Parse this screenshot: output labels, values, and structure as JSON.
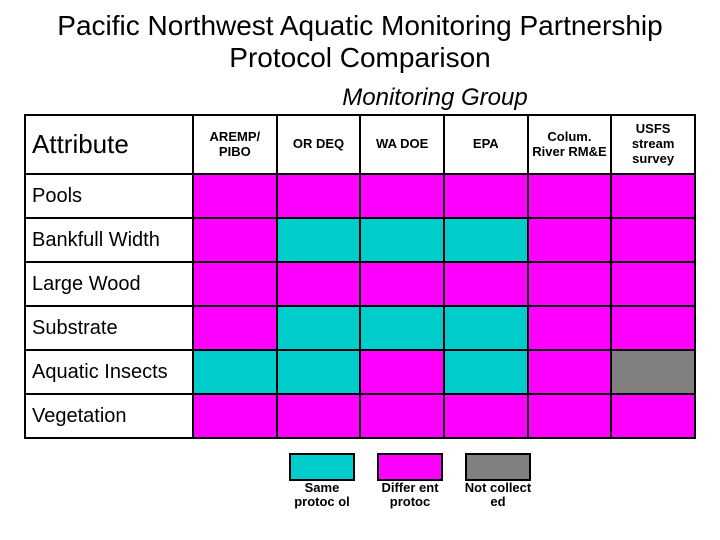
{
  "title": "Pacific Northwest Aquatic Monitoring Partnership Protocol Comparison",
  "subtitle": "Monitoring Group",
  "attribute_header": "Attribute",
  "colors": {
    "same": "#00cccc",
    "diff": "#ff00ff",
    "none": "#808080"
  },
  "groups": [
    "AREMP/ PIBO",
    "OR DEQ",
    "WA DOE",
    "EPA",
    "Colum. River RM&E",
    "USFS stream survey"
  ],
  "rows": [
    {
      "label": "Pools",
      "cells": [
        "diff",
        "diff",
        "diff",
        "diff",
        "diff",
        "diff"
      ]
    },
    {
      "label": "Bankfull Width",
      "cells": [
        "diff",
        "same",
        "same",
        "same",
        "diff",
        "diff"
      ]
    },
    {
      "label": "Large Wood",
      "cells": [
        "diff",
        "diff",
        "diff",
        "diff",
        "diff",
        "diff"
      ]
    },
    {
      "label": "Substrate",
      "cells": [
        "diff",
        "same",
        "same",
        "same",
        "diff",
        "diff"
      ]
    },
    {
      "label": "Aquatic Insects",
      "cells": [
        "same",
        "same",
        "diff",
        "same",
        "diff",
        "none"
      ]
    },
    {
      "label": "Vegetation",
      "cells": [
        "diff",
        "diff",
        "diff",
        "diff",
        "diff",
        "diff"
      ]
    }
  ],
  "legend": [
    {
      "key": "same",
      "label": "Same protoc ol"
    },
    {
      "key": "diff",
      "label": "Differ ent protoc"
    },
    {
      "key": "none",
      "label": "Not collect ed"
    }
  ]
}
